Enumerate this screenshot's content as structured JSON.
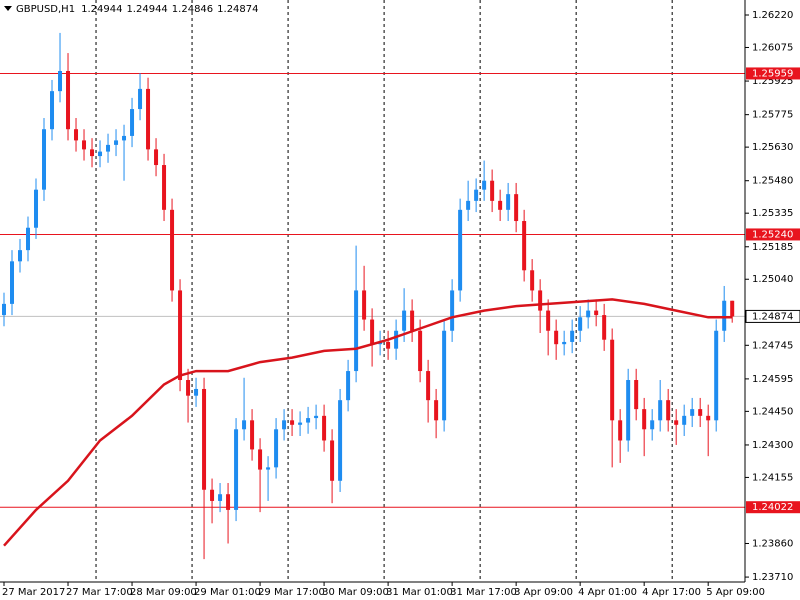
{
  "chart_data": {
    "type": "candlestick",
    "symbol": "GBPUSD,H1",
    "header_values": [
      1.24944,
      1.24944,
      1.24846,
      1.24874
    ],
    "open": [
      1.2488,
      1.2493,
      1.2512,
      1.2517,
      1.2527,
      1.2544,
      1.2571,
      1.2588,
      1.2597,
      1.2571,
      1.2566,
      1.2562,
      1.2559,
      1.2561,
      1.2564,
      1.2566,
      1.2568,
      1.258,
      1.2589,
      1.2562,
      1.2555,
      1.2535,
      1.2499,
      1.2459,
      1.2452,
      1.2455,
      1.241,
      1.2405,
      1.2408,
      1.2401,
      1.2437,
      1.2441,
      1.2428,
      1.2419,
      1.242,
      1.2437,
      1.2441,
      1.2439,
      1.244,
      1.2442,
      1.2443,
      1.2432,
      1.2414,
      1.245,
      1.2463,
      1.2499,
      1.2486,
      1.2475,
      1.2476,
      1.2473,
      1.2481,
      1.249,
      1.2481,
      1.2463,
      1.245,
      1.2441,
      1.2481,
      1.2499,
      1.2535,
      1.2539,
      1.2544,
      1.2548,
      1.2539,
      1.2535,
      1.2542,
      1.253,
      1.2508,
      1.2499,
      1.249,
      1.2481,
      1.2475,
      1.2476,
      1.2481,
      1.2487,
      1.249,
      1.2488,
      1.2477,
      1.2441,
      1.2432,
      1.2459,
      1.2446,
      1.2437,
      1.2441,
      1.245,
      1.2441,
      1.2439,
      1.2443,
      1.2446,
      1.2443,
      1.2441,
      1.2481,
      1.24944
    ],
    "high": [
      1.2498,
      1.2517,
      1.2522,
      1.2532,
      1.2549,
      1.2576,
      1.2593,
      1.2614,
      1.2605,
      1.2576,
      1.2571,
      1.2567,
      1.2566,
      1.2569,
      1.2571,
      1.2573,
      1.2585,
      1.2596,
      1.2594,
      1.2567,
      1.256,
      1.254,
      1.2504,
      1.2464,
      1.246,
      1.246,
      1.2415,
      1.2413,
      1.2413,
      1.2442,
      1.246,
      1.2446,
      1.2433,
      1.2425,
      1.2442,
      1.2446,
      1.2446,
      1.2445,
      1.2447,
      1.2448,
      1.2448,
      1.2437,
      1.2455,
      1.2468,
      1.2519,
      1.251,
      1.2491,
      1.2481,
      1.2481,
      1.2486,
      1.25,
      1.2495,
      1.2486,
      1.2468,
      1.2455,
      1.2486,
      1.2504,
      1.254,
      1.2548,
      1.2549,
      1.2557,
      1.2553,
      1.2544,
      1.2547,
      1.2547,
      1.2535,
      1.2513,
      1.2504,
      1.2495,
      1.2486,
      1.2481,
      1.2486,
      1.2492,
      1.2495,
      1.2495,
      1.2493,
      1.2482,
      1.2446,
      1.2464,
      1.2464,
      1.2451,
      1.2446,
      1.2459,
      1.2455,
      1.2446,
      1.2448,
      1.2451,
      1.2451,
      1.2448,
      1.2486,
      1.2501,
      1.24944
    ],
    "low": [
      1.2483,
      1.2488,
      1.2507,
      1.2512,
      1.2522,
      1.2539,
      1.2566,
      1.2583,
      1.2566,
      1.2561,
      1.2557,
      1.2554,
      1.2554,
      1.2556,
      1.2559,
      1.2548,
      1.2563,
      1.2575,
      1.2557,
      1.255,
      1.253,
      1.2494,
      1.2454,
      1.244,
      1.2447,
      1.2379,
      1.2395,
      1.24,
      1.2386,
      1.2396,
      1.2432,
      1.2423,
      1.24,
      1.2405,
      1.2415,
      1.2432,
      1.2434,
      1.2434,
      1.2435,
      1.2437,
      1.2427,
      1.2404,
      1.2409,
      1.2445,
      1.2458,
      1.2481,
      1.2465,
      1.247,
      1.2468,
      1.2468,
      1.2476,
      1.2476,
      1.2458,
      1.244,
      1.2433,
      1.2436,
      1.2476,
      1.2494,
      1.253,
      1.2534,
      1.2539,
      1.2534,
      1.253,
      1.253,
      1.2525,
      1.2503,
      1.2494,
      1.248,
      1.247,
      1.2468,
      1.247,
      1.2471,
      1.2476,
      1.2482,
      1.2483,
      1.2472,
      1.242,
      1.2422,
      1.2427,
      1.2441,
      1.2425,
      1.2432,
      1.2436,
      1.2436,
      1.243,
      1.2434,
      1.2438,
      1.2438,
      1.2425,
      1.2436,
      1.2476,
      1.24846
    ],
    "close": [
      1.2493,
      1.2512,
      1.2517,
      1.2527,
      1.2544,
      1.2571,
      1.2588,
      1.2597,
      1.2571,
      1.2566,
      1.2562,
      1.2559,
      1.2561,
      1.2564,
      1.2566,
      1.2568,
      1.258,
      1.2589,
      1.2562,
      1.2555,
      1.2535,
      1.2499,
      1.2459,
      1.2452,
      1.2455,
      1.241,
      1.2405,
      1.2408,
      1.2401,
      1.2437,
      1.2441,
      1.2428,
      1.2419,
      1.242,
      1.2437,
      1.2441,
      1.2439,
      1.244,
      1.2442,
      1.2443,
      1.2432,
      1.2414,
      1.245,
      1.2463,
      1.2499,
      1.2486,
      1.2475,
      1.2476,
      1.2473,
      1.2481,
      1.249,
      1.2481,
      1.2463,
      1.245,
      1.2441,
      1.2481,
      1.2499,
      1.2535,
      1.2539,
      1.2544,
      1.2548,
      1.2539,
      1.2535,
      1.2542,
      1.253,
      1.2508,
      1.2499,
      1.249,
      1.2481,
      1.2475,
      1.2476,
      1.2481,
      1.2487,
      1.249,
      1.2488,
      1.2477,
      1.2441,
      1.2432,
      1.2459,
      1.2446,
      1.2437,
      1.2441,
      1.245,
      1.2441,
      1.2439,
      1.2443,
      1.2446,
      1.2443,
      1.2441,
      1.2481,
      1.24944,
      1.24874
    ],
    "up_color": "#1e8cf0",
    "down_color": "#e8141e",
    "moving_average": {
      "color": "#d8141c",
      "x": [
        0,
        4,
        8,
        12,
        16,
        20,
        22,
        24,
        28,
        32,
        36,
        40,
        44,
        48,
        52,
        56,
        60,
        64,
        68,
        72,
        76,
        80,
        84,
        88,
        91
      ],
      "values": [
        1.2385,
        1.2401,
        1.2414,
        1.2432,
        1.2443,
        1.2457,
        1.2461,
        1.2463,
        1.2463,
        1.2467,
        1.2469,
        1.2472,
        1.2473,
        1.2477,
        1.2482,
        1.2487,
        1.249,
        1.2492,
        1.2493,
        1.2494,
        1.2495,
        1.2493,
        1.249,
        1.2487,
        1.2487
      ]
    },
    "levels": [
      {
        "value": 1.25959,
        "label": "1.25959"
      },
      {
        "value": 1.2524,
        "label": "1.25240"
      },
      {
        "value": 1.24022,
        "label": "1.24022"
      }
    ],
    "level_color": "#e8141e",
    "current_price": 1.24874,
    "xlim": [
      -0.5,
      92.6
    ],
    "ylim": [
      1.23688,
      1.26287
    ],
    "yticks": [
      {
        "value": 1.2622,
        "label": "1.26220"
      },
      1.26075,
      1.25925,
      1.25775,
      {
        "value": 1.2563,
        "label": "1.25630"
      },
      {
        "value": 1.2548,
        "label": "1.25480"
      },
      1.25335,
      1.25185,
      {
        "value": 1.2504,
        "label": "1.25040"
      },
      1.24745,
      1.24595,
      {
        "value": 1.2445,
        "label": "1.24450"
      },
      {
        "value": 1.243,
        "label": "1.24300"
      },
      1.24155,
      {
        "value": 1.2386,
        "label": "1.23860"
      },
      {
        "value": 1.2371,
        "label": "1.23710"
      }
    ],
    "xticks": [
      {
        "value": 0,
        "label": "27 Mar 2017"
      },
      {
        "value": 8,
        "label": "27 Mar 17:00"
      },
      {
        "value": 16,
        "label": "28 Mar 09:00"
      },
      {
        "value": 24,
        "label": "29 Mar 01:00"
      },
      {
        "value": 32,
        "label": "29 Mar 17:00"
      },
      {
        "value": 40,
        "label": "30 Mar 09:00"
      },
      {
        "value": 48,
        "label": "31 Mar 01:00"
      },
      {
        "value": 56,
        "label": "31 Mar 17:00"
      },
      {
        "value": 64,
        "label": "3 Apr 09:00"
      },
      {
        "value": 72,
        "label": "4 Apr 01:00"
      },
      {
        "value": 80,
        "label": "4 Apr 17:00"
      },
      {
        "value": 88,
        "label": "5 Apr 09:00"
      }
    ],
    "day_separators": true
  }
}
